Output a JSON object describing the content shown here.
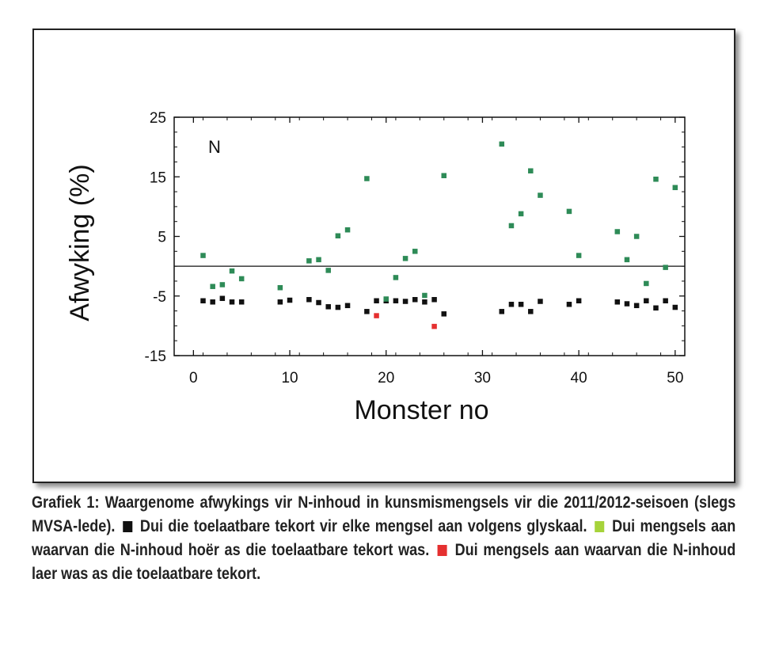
{
  "colors": {
    "limit": "#111111",
    "above": "#2e8b57",
    "below": "#e53030",
    "legend_above": "#a6d33a"
  },
  "chart_data": {
    "type": "scatter",
    "annotation": "N",
    "xlabel": "Monster no",
    "ylabel": "Afwyking (%)",
    "xlim": [
      -2,
      51
    ],
    "ylim": [
      -15,
      25
    ],
    "xticks": [
      0,
      10,
      20,
      30,
      40,
      50
    ],
    "yticks": [
      25,
      15,
      5,
      -5,
      -15
    ],
    "reference_line": 0,
    "grid": false,
    "series": [
      {
        "key": "limit",
        "points": [
          [
            1,
            -5.8
          ],
          [
            2,
            -6
          ],
          [
            3,
            -5.4
          ],
          [
            4,
            -6
          ],
          [
            5,
            -6
          ],
          [
            9,
            -6
          ],
          [
            10,
            -5.7
          ],
          [
            12,
            -5.6
          ],
          [
            13,
            -6.1
          ],
          [
            14,
            -6.8
          ],
          [
            15,
            -6.9
          ],
          [
            16,
            -6.6
          ],
          [
            18,
            -7.6
          ],
          [
            19,
            -5.8
          ],
          [
            20,
            -5.8
          ],
          [
            21,
            -5.8
          ],
          [
            22,
            -5.9
          ],
          [
            23,
            -5.6
          ],
          [
            24,
            -6
          ],
          [
            25,
            -5.6
          ],
          [
            26,
            -8
          ],
          [
            32,
            -7.6
          ],
          [
            33,
            -6.4
          ],
          [
            34,
            -6.4
          ],
          [
            35,
            -7.6
          ],
          [
            36,
            -5.9
          ],
          [
            39,
            -6.4
          ],
          [
            40,
            -5.8
          ],
          [
            44,
            -6
          ],
          [
            45,
            -6.3
          ],
          [
            46,
            -6.6
          ],
          [
            47,
            -5.8
          ],
          [
            48,
            -7
          ],
          [
            49,
            -5.8
          ],
          [
            50,
            -6.9
          ]
        ]
      },
      {
        "key": "above",
        "points": [
          [
            1,
            1.8
          ],
          [
            2,
            -3.4
          ],
          [
            3,
            -3.1
          ],
          [
            4,
            -0.8
          ],
          [
            5,
            -2.1
          ],
          [
            9,
            -3.6
          ],
          [
            12,
            0.9
          ],
          [
            13,
            1.1
          ],
          [
            14,
            -0.7
          ],
          [
            15,
            5.1
          ],
          [
            16,
            6.1
          ],
          [
            18,
            14.7
          ],
          [
            20,
            -5.5
          ],
          [
            21,
            -1.9
          ],
          [
            22,
            1.3
          ],
          [
            23,
            2.5
          ],
          [
            24,
            -4.9
          ],
          [
            26,
            15.2
          ],
          [
            32,
            20.5
          ],
          [
            33,
            6.8
          ],
          [
            34,
            8.8
          ],
          [
            35,
            16
          ],
          [
            36,
            11.9
          ],
          [
            39,
            9.2
          ],
          [
            40,
            1.8
          ],
          [
            44,
            5.8
          ],
          [
            45,
            1.1
          ],
          [
            46,
            5
          ],
          [
            47,
            -2.9
          ],
          [
            48,
            14.6
          ],
          [
            49,
            -0.2
          ],
          [
            50,
            13.2
          ]
        ]
      },
      {
        "key": "below",
        "points": [
          [
            19,
            -8.3
          ],
          [
            25,
            -10.1
          ]
        ]
      }
    ]
  },
  "caption": {
    "text1": "Grafiek 1: Waargenome afwykings vir N-inhoud in kunsmismengsels vir die 2011/2012-seisoen (slegs MVSA-lede).",
    "text2": "Dui die toelaatbare tekort vir elke mengsel aan volgens glyskaal.",
    "text3": "Dui mengsels aan waarvan die N-inhoud hoër as die toelaatbare tekort was.",
    "text4": "Dui mengsels aan waarvan die N-inhoud laer was as die toelaatbare tekort."
  }
}
